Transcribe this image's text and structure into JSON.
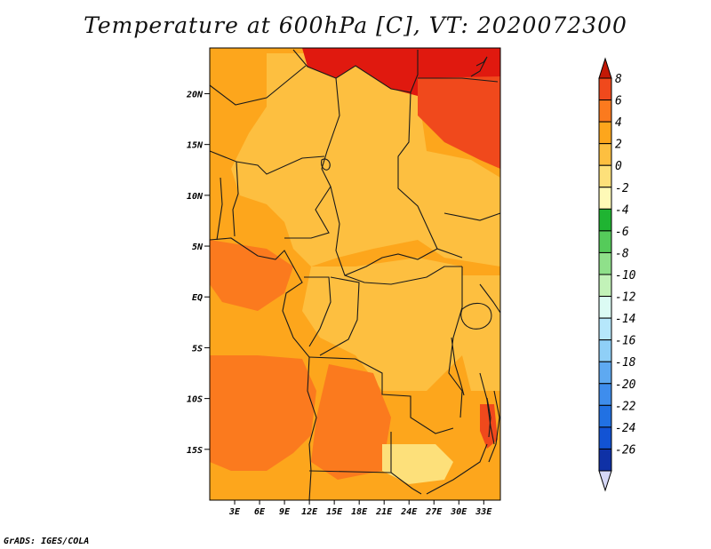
{
  "title": "Temperature at 600hPa [C], VT: 2020072300",
  "credit": "GrADS: IGES/COLA",
  "lat_labels": [
    "20N",
    "15N",
    "10N",
    "5N",
    "EQ",
    "5S",
    "10S",
    "15S"
  ],
  "lon_labels": [
    "3E",
    "6E",
    "9E",
    "12E",
    "15E",
    "18E",
    "21E",
    "24E",
    "27E",
    "30E",
    "33E"
  ],
  "colorbar": {
    "labels": [
      "8",
      "6",
      "4",
      "2",
      "0",
      "-2",
      "-4",
      "-6",
      "-8",
      "-10",
      "-12",
      "-14",
      "-16",
      "-18",
      "-20",
      "-22",
      "-24",
      "-26"
    ],
    "colors": [
      "#e0190f",
      "#f0491c",
      "#fb7a1e",
      "#fda61c",
      "#fdbf40",
      "#fde07a",
      "#fef9b7",
      "#1fb432",
      "#55cb5a",
      "#8fe08a",
      "#c2f2b8",
      "#dcfbf4",
      "#b6e7fb",
      "#8fcff7",
      "#5ea9f1",
      "#3e8ded",
      "#2171e3",
      "#1253d4",
      "#0f31a6",
      "#0b1a78"
    ],
    "top_arrow_color": "#c31806",
    "bottom_arrow_color": "#d6d8f7"
  },
  "map": {
    "lon_range": [
      0,
      35
    ],
    "lat_range": [
      -20,
      24.5
    ],
    "colors": {
      "warm": "#fda61c",
      "mild": "#fdbf40",
      "hot": "#fb7a1e",
      "very_hot": "#f0491c",
      "extreme": "#e0190f",
      "cool": "#fde07a"
    }
  }
}
